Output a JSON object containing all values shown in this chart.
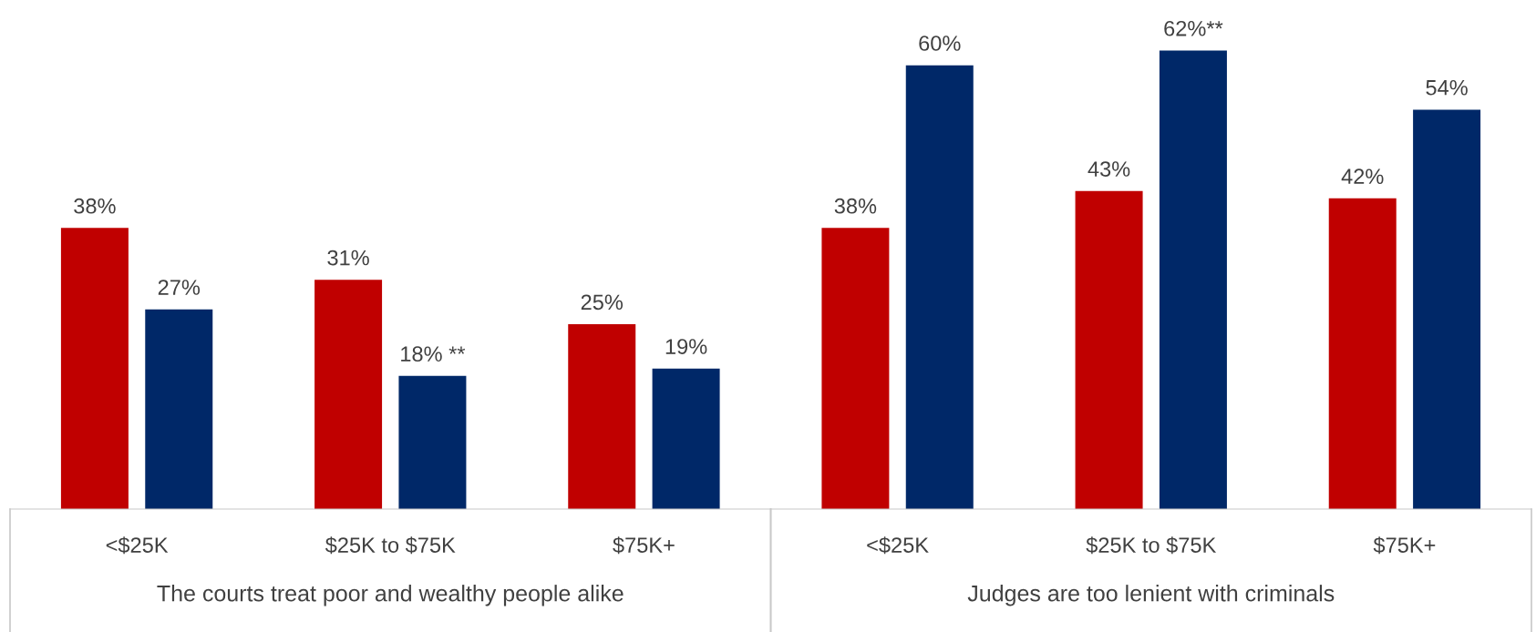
{
  "chart_data": [
    {
      "type": "bar",
      "xlabel": "The courts treat poor and wealthy people alike",
      "categories": [
        "<$25K",
        "$25K to $75K",
        "$75K+"
      ],
      "series": [
        {
          "color": "#c00000",
          "values": [
            38,
            31,
            25
          ],
          "value_labels": [
            "38%",
            "31%",
            "25%"
          ]
        },
        {
          "color": "#002868",
          "values": [
            27,
            18,
            19
          ],
          "value_labels": [
            "27%",
            "18% **",
            "19%"
          ]
        }
      ]
    },
    {
      "type": "bar",
      "xlabel": "Judges are too lenient with criminals",
      "categories": [
        "<$25K",
        "$25K to $75K",
        "$75K+"
      ],
      "series": [
        {
          "color": "#c00000",
          "values": [
            38,
            43,
            42
          ],
          "value_labels": [
            "38%",
            "43%",
            "42%"
          ]
        },
        {
          "color": "#002868",
          "values": [
            60,
            62,
            54
          ],
          "value_labels": [
            "60%",
            "62%**",
            "54%"
          ]
        }
      ]
    }
  ]
}
